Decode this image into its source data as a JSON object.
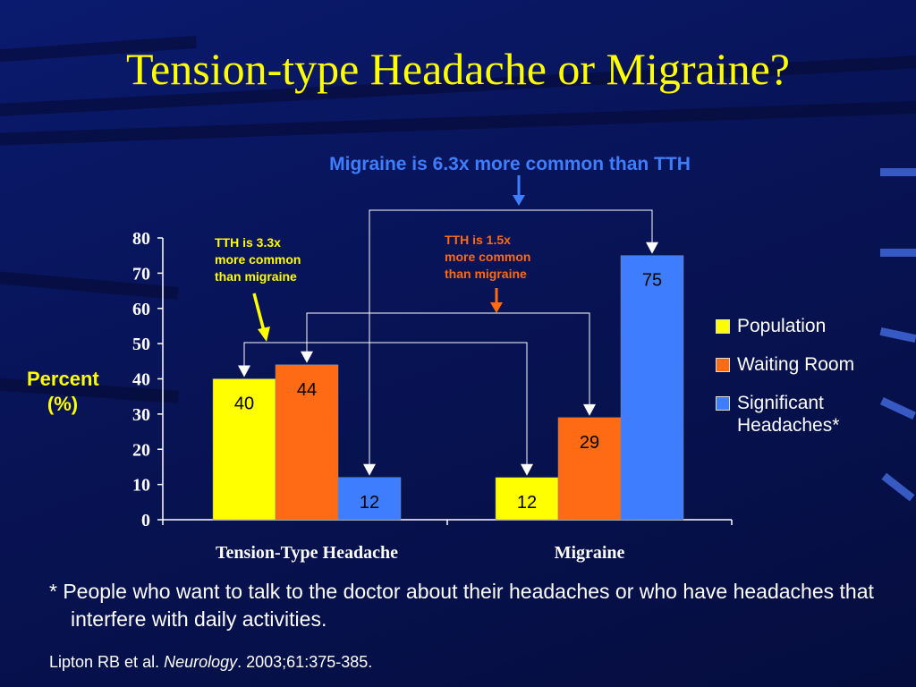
{
  "title": "Tension-type Headache or Migraine?",
  "colors": {
    "population": "#ffff00",
    "waiting_room": "#ff6a14",
    "significant": "#3f7dff",
    "axis": "#ffffff",
    "title": "#ffff00"
  },
  "chart_data": {
    "type": "bar",
    "categories": [
      "Tension-Type Headache",
      "Migraine"
    ],
    "series": [
      {
        "name": "Population",
        "values": [
          40,
          12
        ]
      },
      {
        "name": "Waiting Room",
        "values": [
          44,
          29
        ]
      },
      {
        "name": "Significant Headaches*",
        "values": [
          12,
          75
        ]
      }
    ],
    "ylabel": "Percent (%)",
    "ylabel_line1": "Percent",
    "ylabel_line2": "(%)",
    "ylim": [
      0,
      80
    ],
    "yticks": [
      "0",
      "10",
      "20",
      "30",
      "40",
      "50",
      "60",
      "70",
      "80"
    ],
    "legend_position": "right",
    "grid": false,
    "annotations": {
      "top": "Migraine is 6.3x more common than TTH",
      "yellow_line1": "TTH is 3.3x",
      "yellow_line2": "more common",
      "yellow_line3": "than migraine",
      "orange_line1": "TTH is 1.5x",
      "orange_line2": "more common",
      "orange_line3": "than migraine"
    }
  },
  "legend": {
    "population": "Population",
    "waiting_room": "Waiting Room",
    "significant_line1": "Significant",
    "significant_line2": "Headaches*"
  },
  "footnote": "* People who want to talk to the doctor about their headaches or who have headaches that interfere with daily activities.",
  "citation": {
    "authors": "Lipton RB et al. ",
    "journal": "Neurology",
    "details": ". 2003;61:375-385."
  }
}
